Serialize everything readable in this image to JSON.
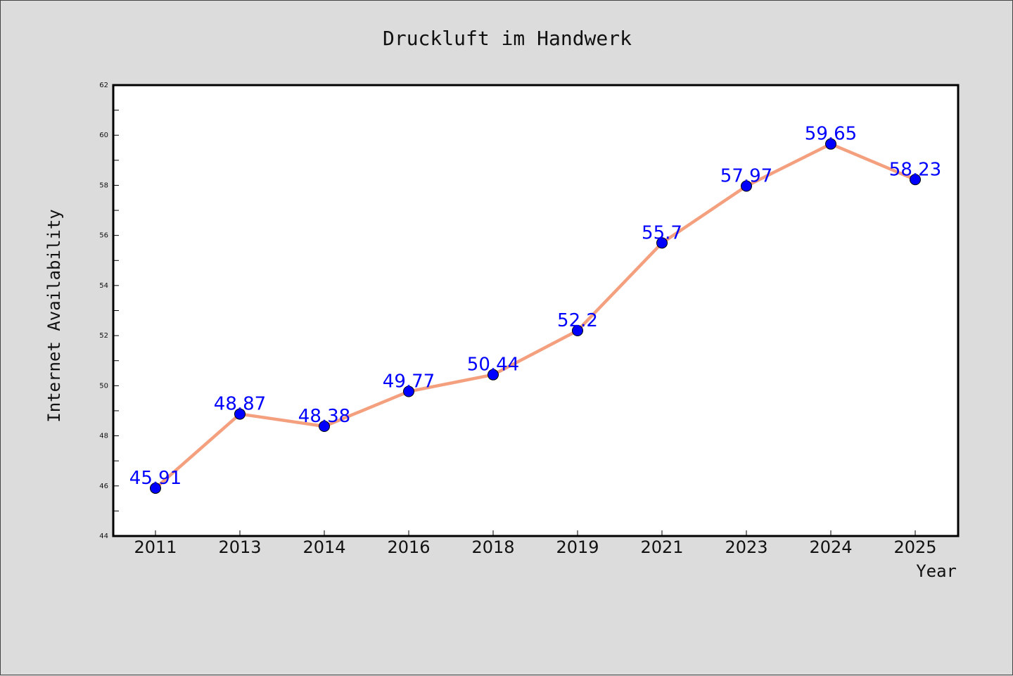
{
  "chart_data": {
    "type": "line",
    "title": "Druckluft im Handwerk",
    "xlabel": "Year",
    "ylabel": "Internet Availability",
    "categories": [
      "2011",
      "2013",
      "2014",
      "2016",
      "2018",
      "2019",
      "2021",
      "2023",
      "2024",
      "2025"
    ],
    "series": [
      {
        "values": [
          45.91,
          48.87,
          48.38,
          49.77,
          50.44,
          52.2,
          55.7,
          57.97,
          59.65,
          58.23
        ],
        "data_labels": [
          "45.91",
          "48.87",
          "48.38",
          "49.77",
          "50.44",
          "52.2",
          "55.7",
          "57.97",
          "59.65",
          "58.23"
        ]
      }
    ],
    "ylim": [
      44,
      62
    ],
    "yticks": [
      "44",
      "46",
      "48",
      "50",
      "52",
      "54",
      "56",
      "58",
      "60",
      "62"
    ],
    "grid": false,
    "legend": "none",
    "colors": {
      "line": "#f4a07f",
      "marker": "#0000ff",
      "data_label": "#0000ff",
      "background": "#dcdcdc",
      "plot_background": "#ffffff"
    }
  }
}
